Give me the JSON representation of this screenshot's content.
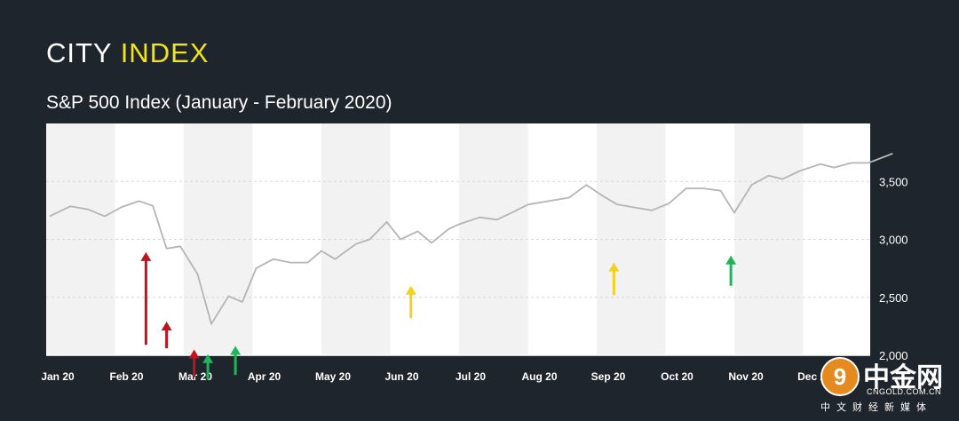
{
  "brand": {
    "word1": "CITY",
    "word2": "INDEX"
  },
  "subtitle": "S&P 500 Index (January - February 2020)",
  "watermark": {
    "symbol": "9",
    "name": "中金网",
    "url": "CNGOLD.COM.CN",
    "tagline": "中文财经新媒体"
  },
  "colors": {
    "background": "#1f252c",
    "plot_band_light": "#ffffff",
    "plot_band_dark": "#f2f2f2",
    "line": "#b5b5b5",
    "arrow_red": "#c1121f",
    "arrow_yellow": "#f2d21b",
    "arrow_green": "#1fb45a"
  },
  "chart_data": {
    "type": "line",
    "x_categories": [
      "Jan 20",
      "Feb 20",
      "Mar 20",
      "Apr 20",
      "May 20",
      "Jun 20",
      "Jul 20",
      "Aug 20",
      "Sep 20",
      "Oct 20",
      "Nov 20",
      "Dec 20"
    ],
    "yticks": [
      "3,500",
      "3,000",
      "2,500",
      "2,000"
    ],
    "ylim": [
      2000,
      4000
    ],
    "grid": "horizontal-dashed",
    "series": [
      {
        "points": [
          [
            0.05,
            3200
          ],
          [
            0.35,
            3285
          ],
          [
            0.6,
            3260
          ],
          [
            0.85,
            3200
          ],
          [
            1.1,
            3280
          ],
          [
            1.35,
            3330
          ],
          [
            1.55,
            3290
          ],
          [
            1.75,
            2920
          ],
          [
            1.95,
            2940
          ],
          [
            2.2,
            2700
          ],
          [
            2.4,
            2270
          ],
          [
            2.65,
            2510
          ],
          [
            2.85,
            2460
          ],
          [
            3.05,
            2750
          ],
          [
            3.3,
            2830
          ],
          [
            3.55,
            2800
          ],
          [
            3.8,
            2800
          ],
          [
            4.0,
            2900
          ],
          [
            4.2,
            2830
          ],
          [
            4.5,
            2960
          ],
          [
            4.7,
            3000
          ],
          [
            4.95,
            3150
          ],
          [
            5.15,
            3000
          ],
          [
            5.4,
            3070
          ],
          [
            5.6,
            2970
          ],
          [
            5.85,
            3090
          ],
          [
            6.0,
            3130
          ],
          [
            6.3,
            3190
          ],
          [
            6.55,
            3170
          ],
          [
            6.8,
            3240
          ],
          [
            7.0,
            3300
          ],
          [
            7.3,
            3330
          ],
          [
            7.6,
            3360
          ],
          [
            7.85,
            3470
          ],
          [
            8.1,
            3370
          ],
          [
            8.3,
            3300
          ],
          [
            8.6,
            3270
          ],
          [
            8.8,
            3250
          ],
          [
            9.05,
            3310
          ],
          [
            9.3,
            3440
          ],
          [
            9.55,
            3440
          ],
          [
            9.8,
            3420
          ],
          [
            10.0,
            3230
          ],
          [
            10.25,
            3470
          ],
          [
            10.5,
            3550
          ],
          [
            10.7,
            3520
          ],
          [
            10.95,
            3590
          ],
          [
            11.25,
            3650
          ],
          [
            11.45,
            3620
          ],
          [
            11.7,
            3660
          ],
          [
            11.95,
            3660
          ],
          [
            12.3,
            3740
          ]
        ]
      }
    ],
    "annotations": [
      {
        "type": "arrow",
        "color": "red",
        "x": 1.45,
        "y_base": 2090,
        "y_tip": 2890
      },
      {
        "type": "arrow",
        "color": "red",
        "x": 1.75,
        "y_base": 2060,
        "y_tip": 2290
      },
      {
        "type": "arrow",
        "color": "red",
        "x": 2.15,
        "y_base": 1810,
        "y_tip": 2050
      },
      {
        "type": "arrow",
        "color": "green",
        "x": 2.35,
        "y_base": 1790,
        "y_tip": 2010
      },
      {
        "type": "arrow",
        "color": "green",
        "x": 2.75,
        "y_base": 1830,
        "y_tip": 2080
      },
      {
        "type": "arrow",
        "color": "yellow",
        "x": 5.3,
        "y_base": 2320,
        "y_tip": 2600
      },
      {
        "type": "arrow",
        "color": "yellow",
        "x": 8.25,
        "y_base": 2520,
        "y_tip": 2800
      },
      {
        "type": "arrow",
        "color": "green",
        "x": 9.95,
        "y_base": 2600,
        "y_tip": 2860
      }
    ]
  }
}
